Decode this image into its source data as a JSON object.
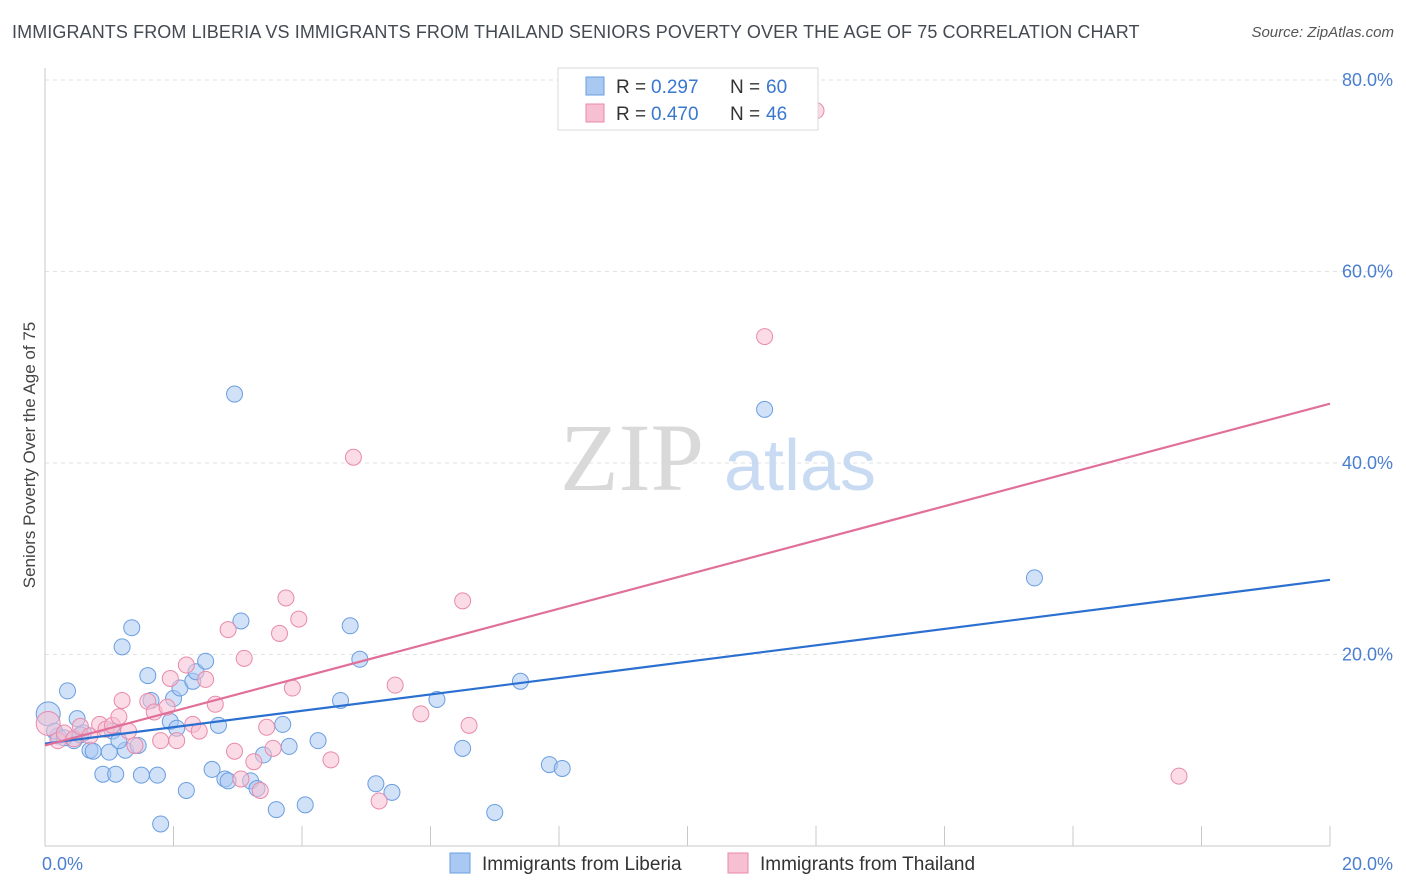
{
  "title": "IMMIGRANTS FROM LIBERIA VS IMMIGRANTS FROM THAILAND SENIORS POVERTY OVER THE AGE OF 75 CORRELATION CHART",
  "source": "Source: ZipAtlas.com",
  "watermark": {
    "zip": "ZIP",
    "atlas": "atlas"
  },
  "chart_data": {
    "type": "scatter",
    "title": "IMMIGRANTS FROM LIBERIA VS IMMIGRANTS FROM THAILAND SENIORS POVERTY OVER THE AGE OF 75 CORRELATION CHART",
    "xlabel": "",
    "ylabel": "Seniors Poverty Over the Age of 75",
    "xlim": [
      0,
      20
    ],
    "ylim": [
      0,
      80
    ],
    "x_ticks": [
      "0.0%",
      "20.0%"
    ],
    "y_ticks": [
      {
        "value": 20,
        "label": "20.0%"
      },
      {
        "value": 40,
        "label": "40.0%"
      },
      {
        "value": 60,
        "label": "60.0%"
      },
      {
        "value": 80,
        "label": "80.0%"
      }
    ],
    "grid": true,
    "legend_top": [
      {
        "r_label": "R =",
        "r": "0.297",
        "n_label": "N =",
        "n": "60"
      },
      {
        "r_label": "R =",
        "r": "0.470",
        "n_label": "N =",
        "n": "46"
      }
    ],
    "series": [
      {
        "name": "Immigrants from Liberia",
        "color": "#a9c8f2",
        "edge": "#6a9ee0",
        "line_color": "#2b70d0",
        "trend": [
          [
            0,
            10.7
          ],
          [
            20,
            27.8
          ]
        ],
        "points": [
          [
            0.05,
            13.8
          ],
          [
            0.2,
            11.5
          ],
          [
            0.35,
            16.2
          ],
          [
            0.45,
            11.0
          ],
          [
            0.5,
            13.3
          ],
          [
            0.6,
            11.8
          ],
          [
            0.7,
            10.0
          ],
          [
            0.75,
            9.9
          ],
          [
            0.9,
            7.5
          ],
          [
            1.0,
            9.8
          ],
          [
            1.05,
            12.0
          ],
          [
            1.1,
            7.5
          ],
          [
            1.2,
            20.8
          ],
          [
            1.25,
            10.0
          ],
          [
            1.35,
            22.8
          ],
          [
            1.45,
            10.5
          ],
          [
            1.5,
            7.4
          ],
          [
            1.6,
            17.8
          ],
          [
            1.65,
            15.2
          ],
          [
            1.75,
            7.4
          ],
          [
            1.8,
            2.3
          ],
          [
            1.95,
            13.0
          ],
          [
            2.0,
            15.4
          ],
          [
            2.05,
            12.3
          ],
          [
            2.1,
            16.5
          ],
          [
            2.2,
            5.8
          ],
          [
            2.3,
            17.2
          ],
          [
            2.35,
            18.2
          ],
          [
            2.5,
            19.3
          ],
          [
            2.6,
            8.0
          ],
          [
            2.7,
            12.6
          ],
          [
            2.8,
            7.0
          ],
          [
            2.85,
            6.8
          ],
          [
            2.95,
            47.2
          ],
          [
            3.05,
            23.5
          ],
          [
            3.2,
            6.8
          ],
          [
            3.3,
            6.0
          ],
          [
            3.4,
            9.5
          ],
          [
            3.6,
            3.8
          ],
          [
            3.7,
            12.7
          ],
          [
            3.8,
            10.4
          ],
          [
            4.05,
            4.3
          ],
          [
            4.25,
            11.0
          ],
          [
            4.6,
            15.2
          ],
          [
            4.75,
            23.0
          ],
          [
            4.9,
            19.5
          ],
          [
            5.15,
            6.5
          ],
          [
            5.4,
            5.6
          ],
          [
            6.1,
            15.3
          ],
          [
            6.5,
            10.2
          ],
          [
            7.0,
            3.5
          ],
          [
            7.4,
            17.2
          ],
          [
            7.85,
            8.5
          ],
          [
            8.05,
            8.1
          ],
          [
            11.2,
            45.6
          ],
          [
            15.4,
            28.0
          ],
          [
            0.15,
            12.0
          ],
          [
            0.3,
            11.3
          ],
          [
            0.55,
            11.6
          ],
          [
            1.15,
            11.0
          ]
        ]
      },
      {
        "name": "Immigrants from Thailand",
        "color": "#f7bfd2",
        "edge": "#e88aab",
        "line_color": "#e0709a",
        "trend": [
          [
            0,
            10.5
          ],
          [
            20,
            46.2
          ]
        ],
        "points": [
          [
            0.05,
            12.8
          ],
          [
            0.2,
            11.0
          ],
          [
            0.3,
            11.8
          ],
          [
            0.45,
            11.2
          ],
          [
            0.55,
            12.5
          ],
          [
            0.7,
            11.5
          ],
          [
            0.85,
            12.7
          ],
          [
            0.95,
            12.2
          ],
          [
            1.05,
            12.6
          ],
          [
            1.15,
            13.5
          ],
          [
            1.2,
            15.2
          ],
          [
            1.3,
            12.0
          ],
          [
            1.4,
            10.5
          ],
          [
            1.6,
            15.1
          ],
          [
            1.7,
            14.0
          ],
          [
            1.8,
            11.0
          ],
          [
            1.9,
            14.5
          ],
          [
            1.95,
            17.5
          ],
          [
            2.05,
            11.0
          ],
          [
            2.2,
            18.9
          ],
          [
            2.3,
            12.7
          ],
          [
            2.4,
            12.0
          ],
          [
            2.5,
            17.4
          ],
          [
            2.65,
            14.8
          ],
          [
            2.85,
            22.6
          ],
          [
            2.95,
            9.9
          ],
          [
            3.05,
            7.0
          ],
          [
            3.1,
            19.6
          ],
          [
            3.25,
            8.8
          ],
          [
            3.35,
            5.8
          ],
          [
            3.45,
            12.4
          ],
          [
            3.55,
            10.2
          ],
          [
            3.65,
            22.2
          ],
          [
            3.75,
            25.9
          ],
          [
            3.85,
            16.5
          ],
          [
            3.95,
            23.7
          ],
          [
            4.45,
            9.0
          ],
          [
            4.8,
            40.6
          ],
          [
            5.2,
            4.7
          ],
          [
            5.45,
            16.8
          ],
          [
            5.85,
            13.8
          ],
          [
            6.5,
            25.6
          ],
          [
            6.6,
            12.6
          ],
          [
            12.0,
            76.8
          ],
          [
            11.2,
            53.2
          ],
          [
            17.65,
            7.3
          ]
        ]
      }
    ]
  },
  "bottom_legend": [
    {
      "label": "Immigrants from Liberia"
    },
    {
      "label": "Immigrants from Thailand"
    }
  ]
}
